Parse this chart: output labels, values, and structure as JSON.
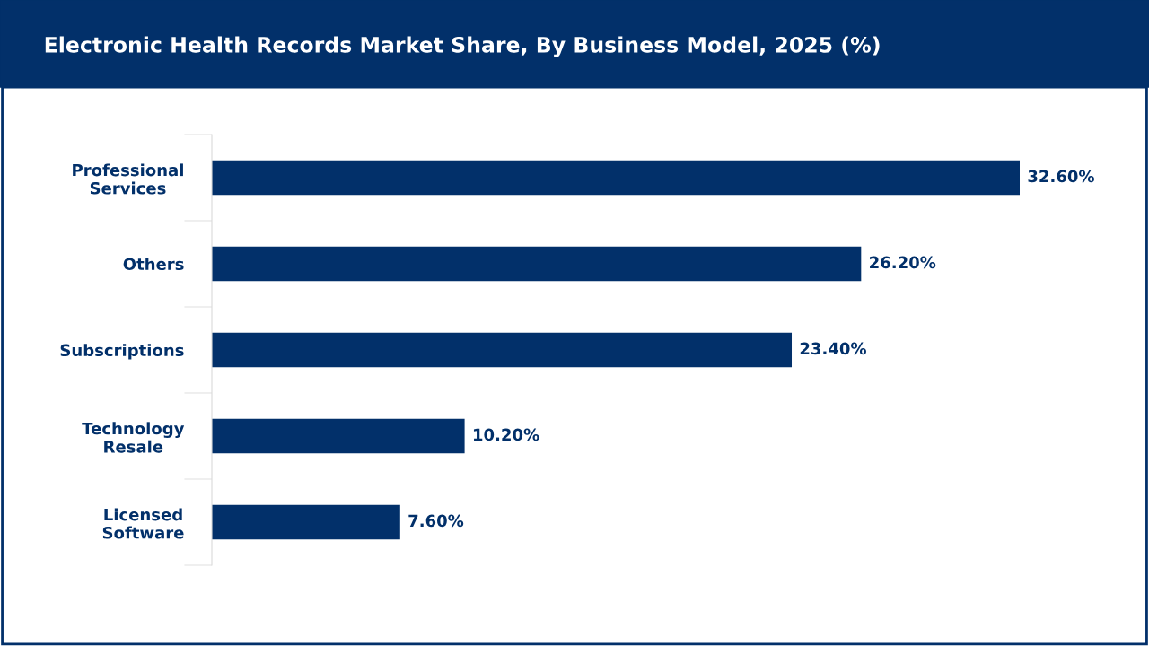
{
  "chart_data": {
    "type": "bar",
    "orientation": "horizontal",
    "title": "Electronic Health Records Market Share, By Business Model, 2025 (%)",
    "categories": [
      "Professional Services",
      "Others",
      "Subscriptions",
      "Technology Resale",
      "Licensed Software"
    ],
    "values": [
      32.6,
      26.2,
      23.4,
      10.2,
      7.6
    ],
    "value_labels": [
      "32.60%",
      "26.20%",
      "23.40%",
      "10.20%",
      "7.60%"
    ],
    "color": "#02306a",
    "tick_labels": "y",
    "grid": false,
    "legend": false
  }
}
